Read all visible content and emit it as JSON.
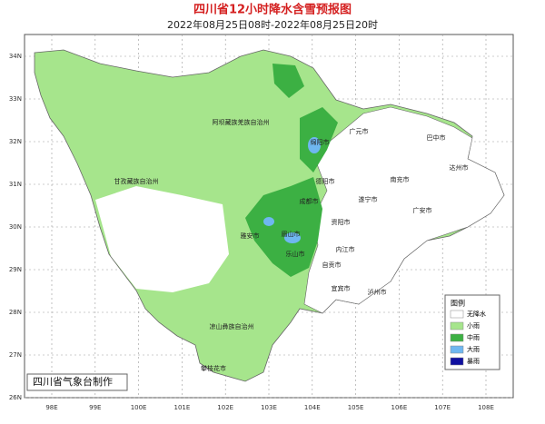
{
  "header": {
    "title": "四川省12小时降水含雪预报图",
    "subtitle": "2022年08月25日08时-2022年08月25日20时"
  },
  "map": {
    "lat_ticks": [
      "34N",
      "33N",
      "32N",
      "31N",
      "30N",
      "29N",
      "28N",
      "27N",
      "26N"
    ],
    "lon_ticks": [
      "98E",
      "99E",
      "100E",
      "101E",
      "102E",
      "103E",
      "104E",
      "105E",
      "106E",
      "107E",
      "108E"
    ],
    "regions": [
      "阿坝藏族羌族自治州",
      "甘孜藏族自治州",
      "凉山彝族自治州",
      "攀枝花市",
      "广元市",
      "巴中市",
      "绵阳市",
      "德阳市",
      "成都市",
      "雅安市",
      "乐山市",
      "眉山市",
      "资阳市",
      "遂宁市",
      "南充市",
      "达州市",
      "广安市",
      "内江市",
      "自贡市",
      "宜宾市",
      "泸州市"
    ]
  },
  "legend": {
    "title": "图例",
    "items": [
      "无降水",
      "小雨",
      "中雨",
      "大雨",
      "暴雨"
    ]
  },
  "footer": "四川省气象台制作"
}
